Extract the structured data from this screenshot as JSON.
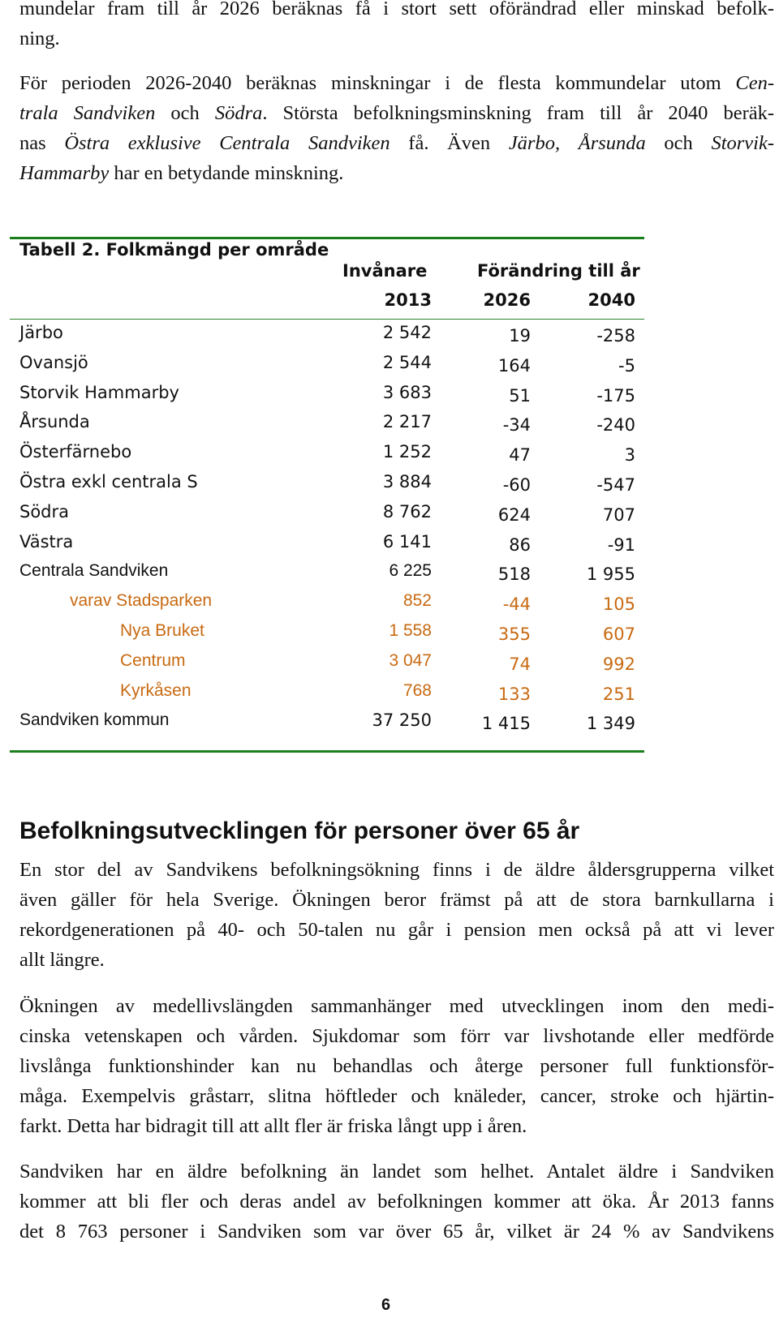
{
  "intro": {
    "line1": "mundelar fram till år 2026 beräknas få i stort sett oförändrad eller minskad befolk-",
    "line2": "ning.",
    "p2_l1": "För perioden 2026-2040 beräknas minskningar i de flesta kommundelar utom ",
    "p2_l1_it": "Cen-",
    "p2_l2_it": "trala Sandviken",
    "p2_l2_a": " och ",
    "p2_l2_it2": "Södra",
    "p2_l2_b": ". Största befolkningsminskning fram till år 2040 beräk-",
    "p2_l3_a": "nas ",
    "p2_l3_it": "Östra exklusive Centrala Sandviken",
    "p2_l3_b": " få. Även ",
    "p2_l3_it2": "Järbo, Årsunda",
    "p2_l3_c": " och ",
    "p2_l3_it3": "Storvik-",
    "p2_l4_it": "Hammarby",
    "p2_l4_a": " har en betydande minskning."
  },
  "table": {
    "title": "Tabell 2. Folkmängd per område",
    "header": {
      "col1": "Invånare",
      "col2": "Förändring till år",
      "year1": "2013",
      "year2": "2026",
      "year3": "2040"
    },
    "rows": [
      {
        "name": "Järbo",
        "inv": "2 542",
        "c2026": "19",
        "c2040": "-258"
      },
      {
        "name": "Ovansjö",
        "inv": "2 544",
        "c2026": "164",
        "c2040": "-5"
      },
      {
        "name": "Storvik Hammarby",
        "inv": "3 683",
        "c2026": "51",
        "c2040": "-175"
      },
      {
        "name": "Årsunda",
        "inv": "2 217",
        "c2026": "-34",
        "c2040": "-240"
      },
      {
        "name": "Österfärnebo",
        "inv": "1 252",
        "c2026": "47",
        "c2040": "3"
      },
      {
        "name": "Östra exkl centrala S",
        "inv": "3 884",
        "c2026": "-60",
        "c2040": "-547"
      },
      {
        "name": "Södra",
        "inv": "8 762",
        "c2026": "624",
        "c2040": "707"
      },
      {
        "name": "Västra",
        "inv": "6 141",
        "c2026": "86",
        "c2040": "-91"
      },
      {
        "name": "Centrala Sandviken",
        "inv": "6 225",
        "c2026": "518",
        "c2040": "1 955"
      },
      {
        "name": "varav Stadsparken",
        "inv": "852",
        "c2026": "-44",
        "c2040": "105"
      },
      {
        "name": "Nya Bruket",
        "inv": "1 558",
        "c2026": "355",
        "c2040": "607"
      },
      {
        "name": "Centrum",
        "inv": "3 047",
        "c2026": "74",
        "c2040": "992"
      },
      {
        "name": "Kyrkåsen",
        "inv": "768",
        "c2026": "133",
        "c2040": "251"
      },
      {
        "name": "Sandviken kommun",
        "inv": "37 250",
        "c2026": "1 415",
        "c2040": "1 349"
      }
    ]
  },
  "section": {
    "heading": "Befolkningsutvecklingen för personer över 65 år",
    "p1": [
      "En stor del av Sandvikens befolkningsökning finns i de äldre åldersgrupperna vilket",
      "även gäller för hela Sverige. Ökningen beror främst på att de stora barnkullarna i",
      "rekordgenerationen på 40- och 50-talen nu går i pension men också på att vi lever",
      "allt längre."
    ],
    "p2": [
      "Ökningen av medellivslängden sammanhänger med utvecklingen inom den medi-",
      "cinska vetenskapen och vården. Sjukdomar som förr var livshotande eller medförde",
      "livslånga funktionshinder kan nu behandlas och återge personer full funktionsför-",
      "måga. Exempelvis gråstarr, slitna höftleder och knäleder, cancer, stroke och hjärtin-",
      "farkt. Detta har bidragit till att allt fler är friska långt upp i åren."
    ],
    "p3": [
      "Sandviken har en äldre befolkning än landet som helhet. Antalet äldre i Sandviken",
      "kommer att bli fler och deras andel av befolkningen kommer att öka. År 2013 fanns",
      "det 8 763 personer i Sandviken som var över 65 år, vilket är 24 % av Sandvikens"
    ]
  },
  "page_number": "6",
  "colors": {
    "rule": "#1a7f1a",
    "orange": "#c86a12"
  }
}
